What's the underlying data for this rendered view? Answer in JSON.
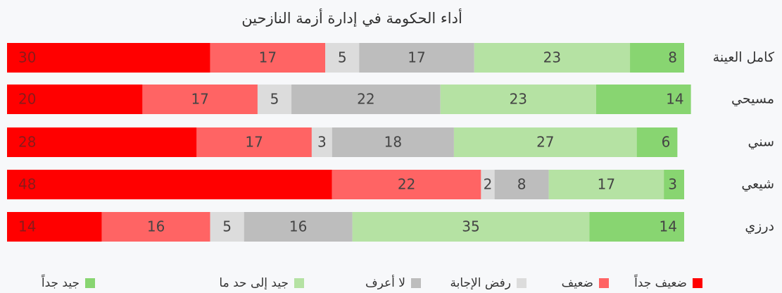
{
  "chart_data": {
    "type": "stacked_barh",
    "title": "أداء الحكومة في إدارة أزمة النازحين",
    "categories": [
      "كامل العينة",
      "مسيحي",
      "سني",
      "شيعي",
      "درزي"
    ],
    "xlim": [
      0,
      100
    ],
    "legend": "bottom",
    "series": [
      {
        "name": "ضعيف جداً",
        "color": "#ff0000",
        "values": [
          30,
          20,
          28,
          48,
          14
        ]
      },
      {
        "name": "ضعيف",
        "color": "#ff6464",
        "values": [
          17,
          17,
          17,
          22,
          16
        ]
      },
      {
        "name": "رفض الإجابة",
        "color": "#dcdcdc",
        "values": [
          5,
          5,
          3,
          2,
          5
        ]
      },
      {
        "name": "لا أعرف",
        "color": "#bdbdbd",
        "values": [
          17,
          22,
          18,
          8,
          16
        ]
      },
      {
        "name": "جيد إلى حد ما",
        "color": "#b5e2a3",
        "values": [
          23,
          23,
          27,
          17,
          35
        ]
      },
      {
        "name": "جيد جداً",
        "color": "#88d571",
        "values": [
          8,
          14,
          6,
          3,
          14
        ]
      }
    ]
  }
}
